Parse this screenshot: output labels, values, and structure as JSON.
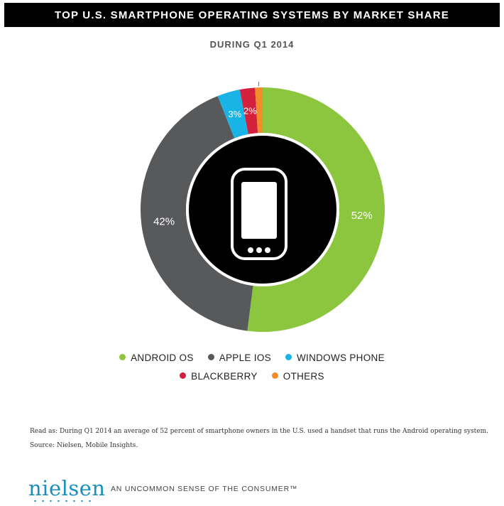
{
  "header": {
    "title": "TOP U.S. SMARTPHONE OPERATING SYSTEMS BY MARKET SHARE",
    "subtitle": "DURING Q1 2014"
  },
  "chart_data": {
    "type": "pie",
    "donut": true,
    "title": "TOP U.S. SMARTPHONE OPERATING SYSTEMS BY MARKET SHARE",
    "subtitle": "DURING Q1 2014",
    "legend_position": "bottom",
    "slices": [
      {
        "name": "ANDROID OS",
        "value": 52,
        "label": "52%",
        "color": "#8cc63f"
      },
      {
        "name": "APPLE IOS",
        "value": 42,
        "label": "42%",
        "color": "#58595b"
      },
      {
        "name": "WINDOWS PHONE",
        "value": 3,
        "label": "3%",
        "color": "#1ab3e6"
      },
      {
        "name": "BLACKBERRY",
        "value": 2,
        "label": "2%",
        "color": "#d3203d"
      },
      {
        "name": "OTHERS",
        "value": 1,
        "label": "1%",
        "color": "#f28c28"
      }
    ],
    "center_icon": "smartphone-icon"
  },
  "legend": {
    "row1": [
      {
        "label": "ANDROID OS",
        "color": "#8cc63f"
      },
      {
        "label": "APPLE IOS",
        "color": "#58595b"
      },
      {
        "label": "WINDOWS PHONE",
        "color": "#1ab3e6"
      }
    ],
    "row2": [
      {
        "label": "BLACKBERRY",
        "color": "#d3203d"
      },
      {
        "label": "OTHERS",
        "color": "#f28c28"
      }
    ]
  },
  "notes": {
    "read_as": "Read as: During Q1 2014 an average of 52 percent of smartphone owners in the U.S. used a handset that runs the Android operating system.",
    "source": "Source: Nielsen, Mobile Insights."
  },
  "footer": {
    "logo": "nielsen",
    "tagline": "AN UNCOMMON SENSE OF THE CONSUMER™"
  }
}
